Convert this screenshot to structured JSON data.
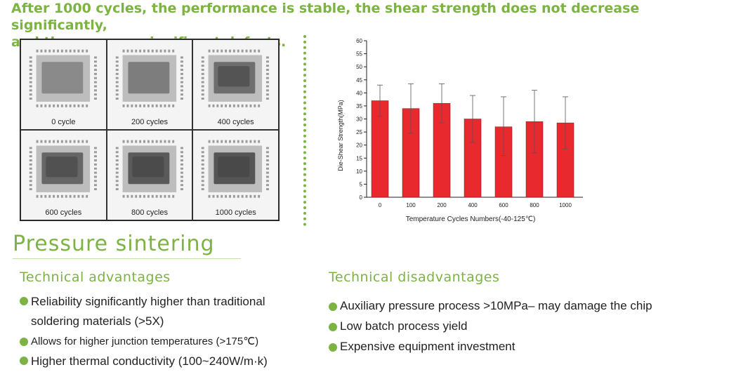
{
  "headline": {
    "line1": "After 1000 cycles, the performance is stable, the shear strength does not decrease significantly,",
    "line2": "and there are no significant defects."
  },
  "images": [
    {
      "label": "0 cycle"
    },
    {
      "label": "200 cycles"
    },
    {
      "label": "400 cycles"
    },
    {
      "label": "600 cycles"
    },
    {
      "label": "800 cycles"
    },
    {
      "label": "1000 cycles"
    }
  ],
  "chart_data": {
    "type": "bar",
    "categories": [
      "0",
      "100",
      "200",
      "400",
      "600",
      "800",
      "1000"
    ],
    "values": [
      37,
      34,
      36,
      30,
      27,
      29,
      28.5
    ],
    "error_upper": [
      43,
      43.5,
      43.5,
      39,
      38.5,
      41,
      38.5
    ],
    "error_lower": [
      31,
      24.5,
      28.5,
      21,
      16,
      17,
      18.5
    ],
    "xlabel": "Temperature Cycles Numbers(-40-125℃)",
    "ylabel": "Die-Shear Strength(MPa)",
    "ylim": [
      0,
      60
    ],
    "yticks": [
      "0",
      "5",
      "10",
      "15",
      "20",
      "25",
      "30",
      "35",
      "40",
      "45",
      "50",
      "55",
      "60"
    ],
    "bar_color": "#e8292e",
    "grid": false
  },
  "section_title": "Pressure sintering",
  "advantages": {
    "title": "Technical advantages",
    "items": [
      {
        "line1": "Reliability significantly higher than traditional",
        "line2": "soldering materials (>5X)"
      },
      {
        "line1": "Allows for higher junction temperatures (>175℃)"
      },
      {
        "line1": "Higher thermal conductivity (100~240W/m·k)"
      }
    ]
  },
  "disadvantages": {
    "title": "Technical disadvantages",
    "items": [
      {
        "line1": "Auxiliary pressure process >10MPa– may damage the chip"
      },
      {
        "line1": "Low batch process yield"
      },
      {
        "line1": "Expensive equipment investment"
      }
    ]
  },
  "colors": {
    "accent": "#7cb342"
  }
}
